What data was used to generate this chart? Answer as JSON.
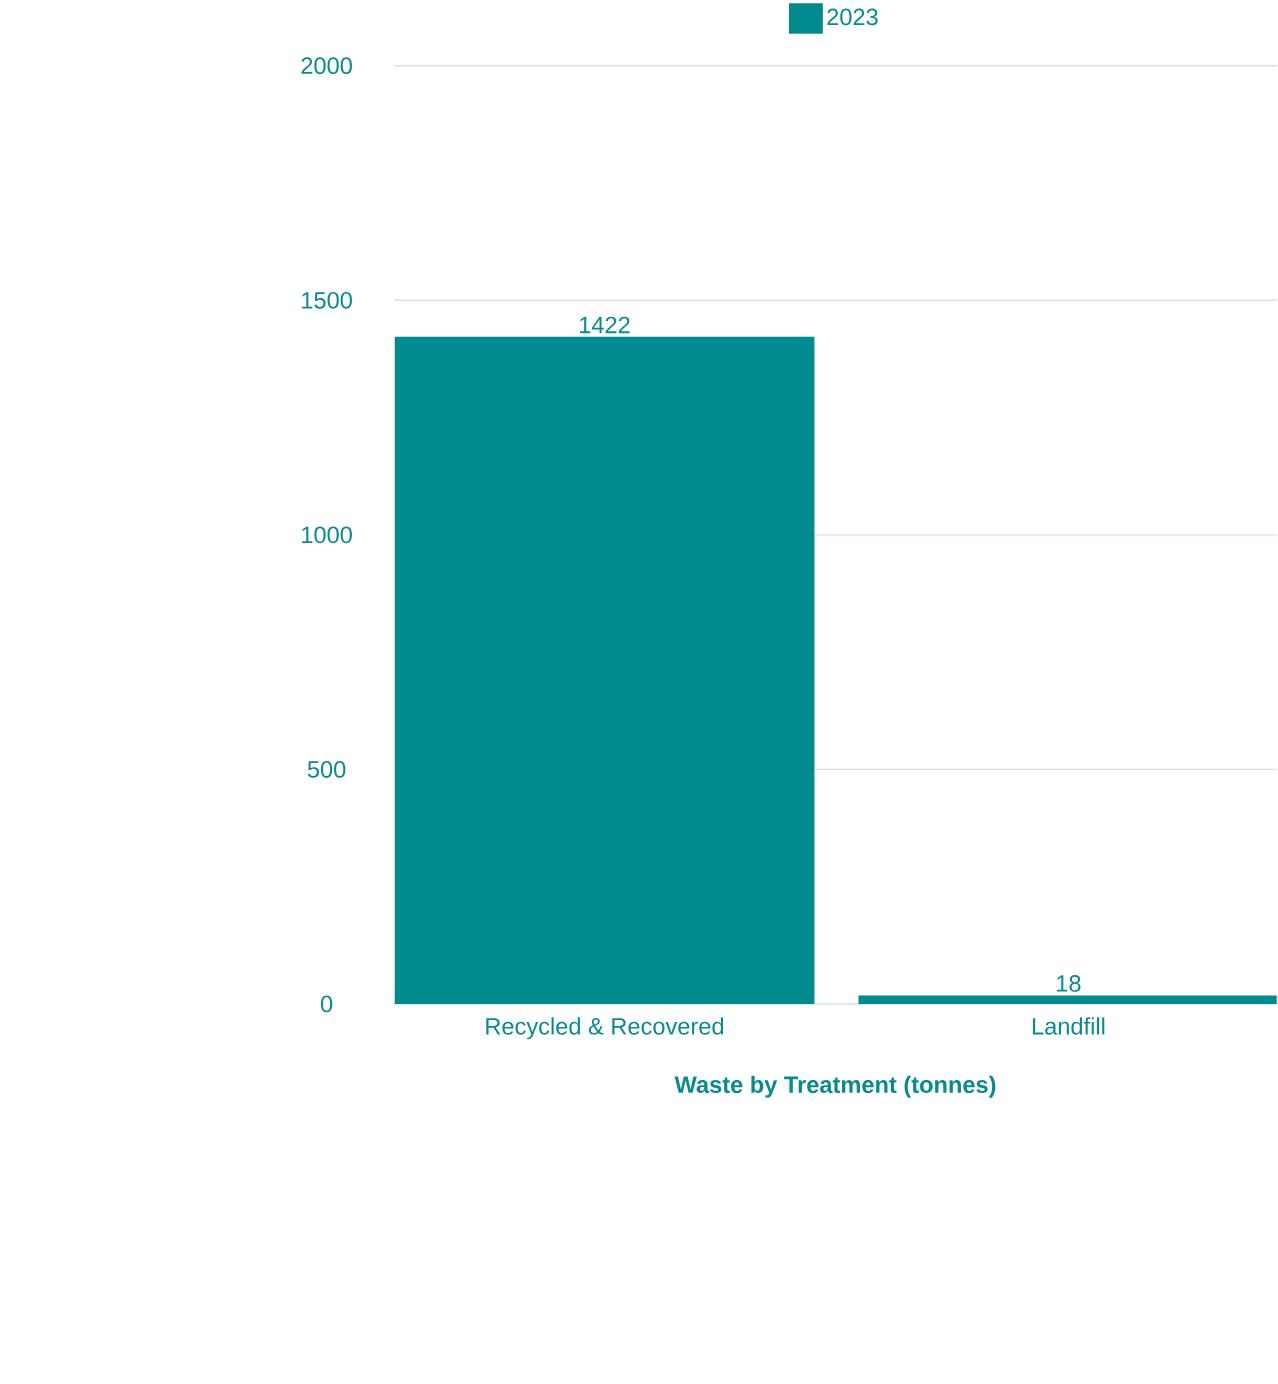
{
  "chart_data": {
    "type": "bar",
    "xlabel": "Waste by Treatment (tonnes)",
    "categories": [
      "Recycled & Recovered",
      "Landfill"
    ],
    "series": [
      {
        "name": "2023",
        "color": "#018b8f",
        "values": [
          1422,
          18
        ]
      }
    ],
    "ylim": [
      0,
      2000
    ],
    "yticks": [
      0,
      500,
      1000,
      1500,
      2000
    ],
    "grid": "y",
    "legend": "top",
    "data_labels": true
  }
}
